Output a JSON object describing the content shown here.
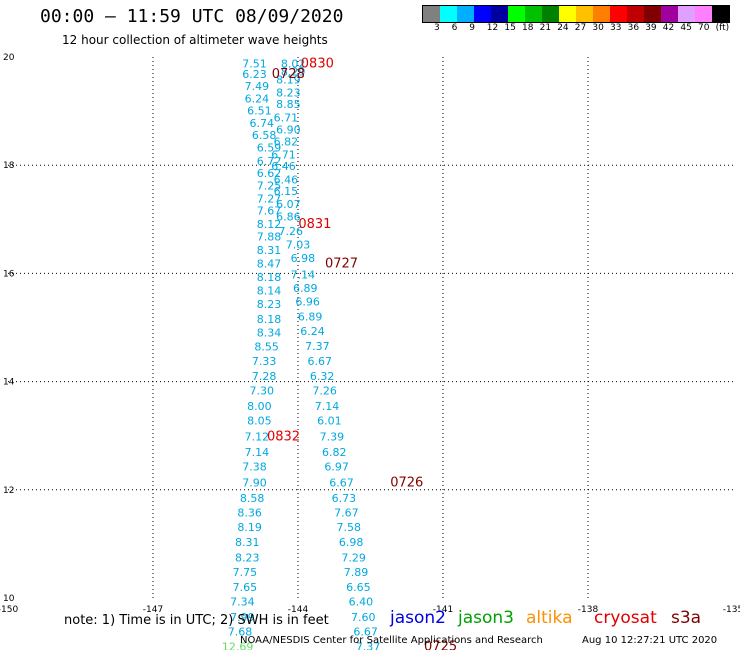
{
  "header": {
    "title": "00:00 – 11:59 UTC 08/09/2020",
    "subtitle": "12 hour collection of altimeter wave heights"
  },
  "colorbar": {
    "colors": [
      "#808080",
      "#00ffff",
      "#00b0ff",
      "#0000ff",
      "#0000a0",
      "#00ff00",
      "#00c000",
      "#008000",
      "#ffff00",
      "#ffc000",
      "#ff8000",
      "#ff0000",
      "#c00000",
      "#800000",
      "#a000a0",
      "#e0a0ff",
      "#ff80ff",
      "#000000"
    ],
    "labels": [
      "3",
      "6",
      "9",
      "12",
      "15",
      "18",
      "21",
      "24",
      "27",
      "30",
      "33",
      "36",
      "39",
      "42",
      "45",
      "70",
      "(ft)"
    ]
  },
  "chart_data": {
    "type": "scatter",
    "xlim": [
      -150,
      -135
    ],
    "ylim": [
      10,
      20
    ],
    "x_ticks": [
      "-150",
      "-147",
      "-144",
      "-141",
      "-138",
      "-135"
    ],
    "y_ticks": [
      "10",
      "12",
      "14",
      "16",
      "18",
      "20"
    ],
    "grid": true,
    "swh_labels": [
      {
        "lon": -144.9,
        "lat": 19.9,
        "v": "7.51"
      },
      {
        "lon": -144.1,
        "lat": 19.9,
        "v": "8.02"
      },
      {
        "lon": -144.9,
        "lat": 19.7,
        "v": "6.23"
      },
      {
        "lon": -144.1,
        "lat": 19.75,
        "v": "8.29"
      },
      {
        "lon": -144.85,
        "lat": 19.48,
        "v": "7.49"
      },
      {
        "lon": -144.2,
        "lat": 19.6,
        "v": "8.19"
      },
      {
        "lon": -144.85,
        "lat": 19.25,
        "v": "6.24"
      },
      {
        "lon": -144.2,
        "lat": 19.36,
        "v": "8.23"
      },
      {
        "lon": -144.8,
        "lat": 19.03,
        "v": "6.51"
      },
      {
        "lon": -144.2,
        "lat": 19.15,
        "v": "8.85"
      },
      {
        "lon": -144.75,
        "lat": 18.8,
        "v": "6.74"
      },
      {
        "lon": -144.25,
        "lat": 18.9,
        "v": "6.71"
      },
      {
        "lon": -144.7,
        "lat": 18.58,
        "v": "6.58"
      },
      {
        "lon": -144.2,
        "lat": 18.68,
        "v": "6.90"
      },
      {
        "lon": -144.6,
        "lat": 18.35,
        "v": "6.59"
      },
      {
        "lon": -144.25,
        "lat": 18.46,
        "v": "6.82"
      },
      {
        "lon": -144.6,
        "lat": 18.1,
        "v": "6.72"
      },
      {
        "lon": -144.3,
        "lat": 18.22,
        "v": "6.71"
      },
      {
        "lon": -144.6,
        "lat": 17.87,
        "v": "6.62"
      },
      {
        "lon": -144.3,
        "lat": 18.0,
        "v": "6.46"
      },
      {
        "lon": -144.6,
        "lat": 17.64,
        "v": "7.25"
      },
      {
        "lon": -144.25,
        "lat": 17.75,
        "v": "6.46"
      },
      {
        "lon": -144.6,
        "lat": 17.4,
        "v": "7.27"
      },
      {
        "lon": -144.25,
        "lat": 17.54,
        "v": "6.15"
      },
      {
        "lon": -144.6,
        "lat": 17.18,
        "v": "7.67"
      },
      {
        "lon": -144.2,
        "lat": 17.3,
        "v": "6.07"
      },
      {
        "lon": -144.6,
        "lat": 16.93,
        "v": "8.12"
      },
      {
        "lon": -144.2,
        "lat": 17.07,
        "v": "6.86"
      },
      {
        "lon": -144.6,
        "lat": 16.7,
        "v": "7.88"
      },
      {
        "lon": -144.15,
        "lat": 16.8,
        "v": "7.26"
      },
      {
        "lon": -144.6,
        "lat": 16.45,
        "v": "8.31"
      },
      {
        "lon": -144.0,
        "lat": 16.55,
        "v": "7.03"
      },
      {
        "lon": -144.6,
        "lat": 16.2,
        "v": "8.47"
      },
      {
        "lon": -143.9,
        "lat": 16.3,
        "v": "6.98"
      },
      {
        "lon": -144.6,
        "lat": 15.95,
        "v": "8.18"
      },
      {
        "lon": -143.9,
        "lat": 16.0,
        "v": "7.14"
      },
      {
        "lon": -144.6,
        "lat": 15.7,
        "v": "8.14"
      },
      {
        "lon": -143.85,
        "lat": 15.75,
        "v": "6.89"
      },
      {
        "lon": -144.6,
        "lat": 15.45,
        "v": "8.23"
      },
      {
        "lon": -143.8,
        "lat": 15.5,
        "v": "6.96"
      },
      {
        "lon": -144.6,
        "lat": 15.18,
        "v": "8.18"
      },
      {
        "lon": -143.75,
        "lat": 15.22,
        "v": "6.89"
      },
      {
        "lon": -144.6,
        "lat": 14.93,
        "v": "8.34"
      },
      {
        "lon": -143.7,
        "lat": 14.95,
        "v": "6.24"
      },
      {
        "lon": -144.65,
        "lat": 14.67,
        "v": "8.55"
      },
      {
        "lon": -143.6,
        "lat": 14.68,
        "v": "7.37"
      },
      {
        "lon": -144.7,
        "lat": 14.4,
        "v": "7.33"
      },
      {
        "lon": -143.55,
        "lat": 14.4,
        "v": "6.67"
      },
      {
        "lon": -144.7,
        "lat": 14.12,
        "v": "7.28"
      },
      {
        "lon": -143.5,
        "lat": 14.12,
        "v": "6.32"
      },
      {
        "lon": -144.75,
        "lat": 13.85,
        "v": "7.30"
      },
      {
        "lon": -143.45,
        "lat": 13.85,
        "v": "7.26"
      },
      {
        "lon": -144.8,
        "lat": 13.57,
        "v": "8.00"
      },
      {
        "lon": -143.4,
        "lat": 13.57,
        "v": "7.14"
      },
      {
        "lon": -144.8,
        "lat": 13.3,
        "v": "8.05"
      },
      {
        "lon": -143.35,
        "lat": 13.3,
        "v": "6.01"
      },
      {
        "lon": -144.85,
        "lat": 13.0,
        "v": "7.12"
      },
      {
        "lon": -143.3,
        "lat": 13.0,
        "v": "7.39"
      },
      {
        "lon": -144.85,
        "lat": 12.72,
        "v": "7.14"
      },
      {
        "lon": -143.25,
        "lat": 12.72,
        "v": "6.82"
      },
      {
        "lon": -144.9,
        "lat": 12.45,
        "v": "7.38"
      },
      {
        "lon": -143.2,
        "lat": 12.45,
        "v": "6.97"
      },
      {
        "lon": -144.9,
        "lat": 12.15,
        "v": "7.90"
      },
      {
        "lon": -143.1,
        "lat": 12.15,
        "v": "6.67"
      },
      {
        "lon": -144.95,
        "lat": 11.87,
        "v": "8.58"
      },
      {
        "lon": -143.05,
        "lat": 11.87,
        "v": "6.73"
      },
      {
        "lon": -145.0,
        "lat": 11.6,
        "v": "8.36"
      },
      {
        "lon": -143.0,
        "lat": 11.6,
        "v": "7.67"
      },
      {
        "lon": -145.0,
        "lat": 11.33,
        "v": "8.19"
      },
      {
        "lon": -142.95,
        "lat": 11.33,
        "v": "7.58"
      },
      {
        "lon": -145.05,
        "lat": 11.05,
        "v": "8.31"
      },
      {
        "lon": -142.9,
        "lat": 11.05,
        "v": "6.98"
      },
      {
        "lon": -145.05,
        "lat": 10.77,
        "v": "8.23"
      },
      {
        "lon": -142.85,
        "lat": 10.77,
        "v": "7.29"
      },
      {
        "lon": -145.1,
        "lat": 10.5,
        "v": "7.75"
      },
      {
        "lon": -142.8,
        "lat": 10.5,
        "v": "7.89"
      },
      {
        "lon": -145.1,
        "lat": 10.22,
        "v": "7.65"
      },
      {
        "lon": -142.75,
        "lat": 10.22,
        "v": "6.65"
      },
      {
        "lon": -145.15,
        "lat": 9.95,
        "v": "7.34"
      },
      {
        "lon": -142.7,
        "lat": 9.95,
        "v": "6.40"
      },
      {
        "lon": -145.15,
        "lat": 9.67,
        "v": "7.99"
      },
      {
        "lon": -142.65,
        "lat": 9.67,
        "v": "7.60"
      },
      {
        "lon": -145.2,
        "lat": 9.4,
        "v": "7.68"
      },
      {
        "lon": -142.6,
        "lat": 9.4,
        "v": "6.67"
      },
      {
        "lon": -145.25,
        "lat": 9.12,
        "v": "12.69",
        "hi": true
      },
      {
        "lon": -142.55,
        "lat": 9.12,
        "v": "7.37"
      }
    ],
    "time_labels": [
      {
        "lon": -143.6,
        "lat": 19.9,
        "v": "0830",
        "color": "#e00000"
      },
      {
        "lon": -144.2,
        "lat": 19.7,
        "v": "0728",
        "color": "#800000"
      },
      {
        "lon": -143.65,
        "lat": 16.93,
        "v": "0831",
        "color": "#e00000"
      },
      {
        "lon": -143.1,
        "lat": 16.2,
        "v": "0727",
        "color": "#800000"
      },
      {
        "lon": -144.3,
        "lat": 13.0,
        "v": "0832",
        "color": "#e00000"
      },
      {
        "lon": -141.75,
        "lat": 12.15,
        "v": "0726",
        "color": "#800000"
      },
      {
        "lon": -141.05,
        "lat": 9.12,
        "v": "0725",
        "color": "#800000"
      }
    ]
  },
  "legend": {
    "note": "note: 1) Time is in UTC; 2) SWH is in feet",
    "satellites": [
      {
        "name": "jason2",
        "color": "#0000e0"
      },
      {
        "name": "jason3",
        "color": "#00a000"
      },
      {
        "name": "altika",
        "color": "#ff9000"
      },
      {
        "name": "cryosat",
        "color": "#e00000"
      },
      {
        "name": "s3a",
        "color": "#800000"
      }
    ]
  },
  "footer": {
    "credit": "NOAA/NESDIS Center for Satellite Applications and Research",
    "timestamp": "Aug 10 12:27:21 UTC 2020"
  }
}
